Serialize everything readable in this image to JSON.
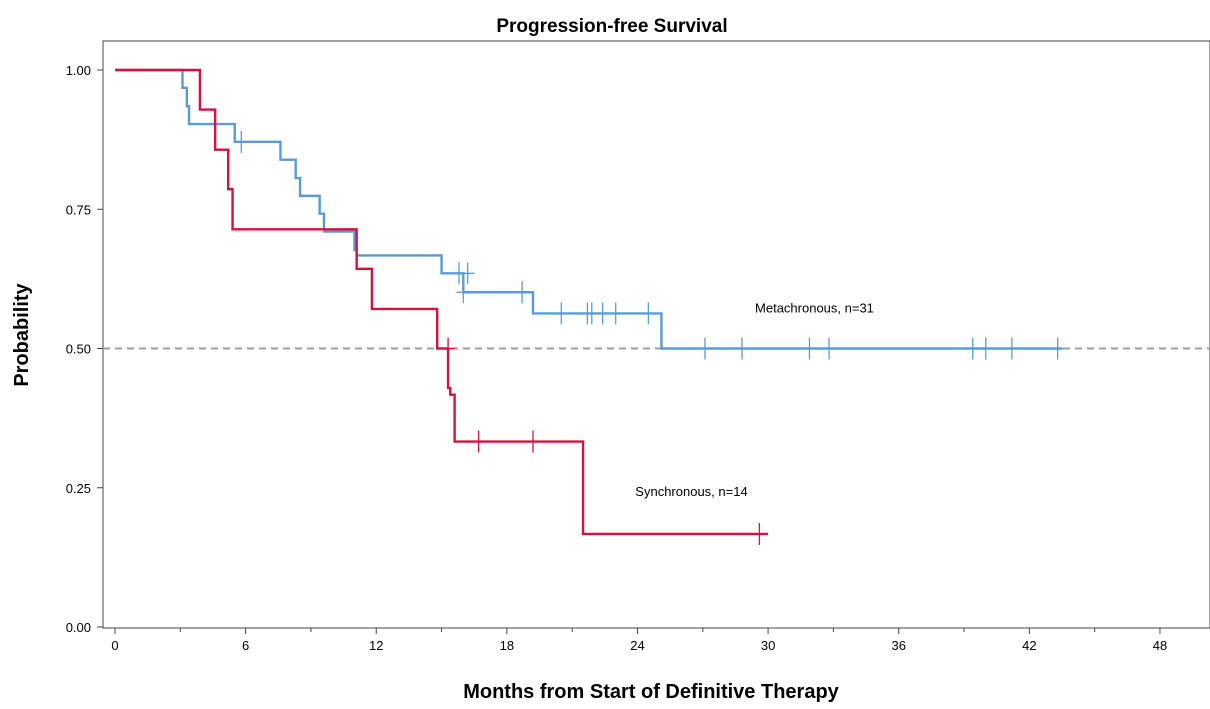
{
  "chart_data": {
    "type": "line",
    "title": "Progression-free Survival",
    "xlabel": "Months from Start of Definitive Therapy",
    "ylabel": "Probability",
    "xlim": [
      0,
      49.5
    ],
    "ylim": [
      0,
      1.03
    ],
    "xticks": [
      0,
      6,
      12,
      18,
      24,
      30,
      36,
      42,
      48
    ],
    "xtick_labels": [
      "0",
      "6",
      "12",
      "18",
      "24",
      "30",
      "36",
      "42",
      "48"
    ],
    "yticks": [
      0,
      0.25,
      0.5,
      0.75,
      1.0
    ],
    "ytick_labels": [
      "0.00",
      "0.25",
      "0.50",
      "0.75",
      "1.00"
    ],
    "reference_line": {
      "y": 0.5,
      "style": "dashed",
      "color": "#a0a0a0"
    },
    "series": [
      {
        "name": "Metachronous, n=31",
        "color": "#5b9bd5",
        "label_position": [
          29.4,
          0.565
        ],
        "steps": [
          [
            0,
            1.0
          ],
          [
            3.1,
            0.968
          ],
          [
            3.3,
            0.935
          ],
          [
            3.4,
            0.903
          ],
          [
            5.5,
            0.871
          ],
          [
            7.6,
            0.839
          ],
          [
            8.3,
            0.806
          ],
          [
            8.5,
            0.774
          ],
          [
            9.4,
            0.742
          ],
          [
            9.6,
            0.71
          ],
          [
            11.0,
            0.677
          ],
          [
            11.1,
            0.667
          ],
          [
            15.0,
            0.635
          ],
          [
            16.0,
            0.601
          ],
          [
            19.2,
            0.563
          ],
          [
            25.1,
            0.5
          ],
          [
            43.5,
            0.5
          ]
        ],
        "censored": [
          [
            5.8,
            0.871
          ],
          [
            15.8,
            0.635
          ],
          [
            16.2,
            0.635
          ],
          [
            16.0,
            0.601
          ],
          [
            18.7,
            0.601
          ],
          [
            20.5,
            0.563
          ],
          [
            21.7,
            0.563
          ],
          [
            21.9,
            0.563
          ],
          [
            22.4,
            0.563
          ],
          [
            23.0,
            0.563
          ],
          [
            24.5,
            0.563
          ],
          [
            27.1,
            0.5
          ],
          [
            28.8,
            0.5
          ],
          [
            31.9,
            0.5
          ],
          [
            32.8,
            0.5
          ],
          [
            39.4,
            0.5
          ],
          [
            40.0,
            0.5
          ],
          [
            41.2,
            0.5
          ],
          [
            43.3,
            0.5
          ]
        ]
      },
      {
        "name": "Synchronous, n=14",
        "color": "#d4123e",
        "label_position": [
          23.9,
          0.235
        ],
        "steps": [
          [
            0,
            1.0
          ],
          [
            3.9,
            0.929
          ],
          [
            4.6,
            0.857
          ],
          [
            5.2,
            0.786
          ],
          [
            5.4,
            0.714
          ],
          [
            11.1,
            0.643
          ],
          [
            11.8,
            0.571
          ],
          [
            14.8,
            0.5
          ],
          [
            15.3,
            0.429
          ],
          [
            15.4,
            0.417
          ],
          [
            15.6,
            0.333
          ],
          [
            21.5,
            0.167
          ],
          [
            30.0,
            0.167
          ]
        ],
        "censored": [
          [
            15.3,
            0.5
          ],
          [
            16.7,
            0.333
          ],
          [
            19.2,
            0.333
          ],
          [
            29.6,
            0.167
          ]
        ]
      }
    ]
  }
}
